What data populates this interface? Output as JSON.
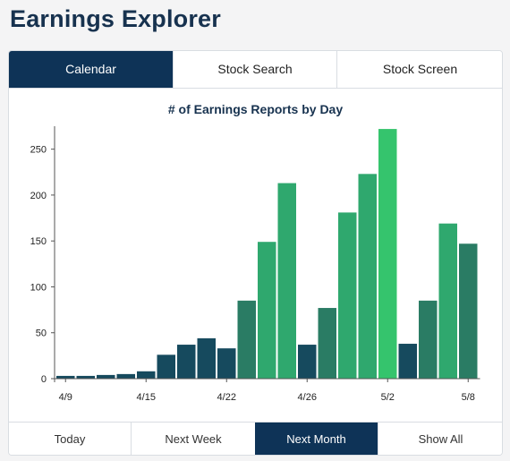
{
  "page": {
    "title": "Earnings Explorer"
  },
  "tabs": [
    {
      "label": "Calendar",
      "active": true
    },
    {
      "label": "Stock Search",
      "active": false
    },
    {
      "label": "Stock Screen",
      "active": false
    }
  ],
  "colors": {
    "navy": "#0e3357",
    "dark_teal": "#164a5e",
    "mid_green": "#2a7c64",
    "green": "#2fa86e",
    "bright_green": "#35c46d"
  },
  "chart_data": {
    "type": "bar",
    "title": "# of Earnings Reports by Day",
    "x_tick_labels": [
      "4/9",
      "4/15",
      "4/22",
      "4/26",
      "5/2",
      "5/8"
    ],
    "y_ticks": [
      0,
      50,
      100,
      150,
      200,
      250
    ],
    "ylim": [
      0,
      275
    ],
    "values": [
      3,
      3,
      4,
      5,
      8,
      26,
      37,
      44,
      33,
      85,
      149,
      213,
      37,
      77,
      181,
      223,
      272,
      38,
      85,
      169,
      147
    ],
    "bar_colors": [
      "#164a5e",
      "#164a5e",
      "#164a5e",
      "#164a5e",
      "#164a5e",
      "#164a5e",
      "#164a5e",
      "#164a5e",
      "#164a5e",
      "#2a7c64",
      "#2fa86e",
      "#2fa86e",
      "#164a5e",
      "#2a7c64",
      "#2fa86e",
      "#2fa86e",
      "#35c46d",
      "#164a5e",
      "#2a7c64",
      "#2fa86e",
      "#2a7c64"
    ],
    "grid": false
  },
  "ranges": [
    {
      "label": "Today",
      "active": false
    },
    {
      "label": "Next Week",
      "active": false
    },
    {
      "label": "Next Month",
      "active": true
    },
    {
      "label": "Show All",
      "active": false
    }
  ]
}
